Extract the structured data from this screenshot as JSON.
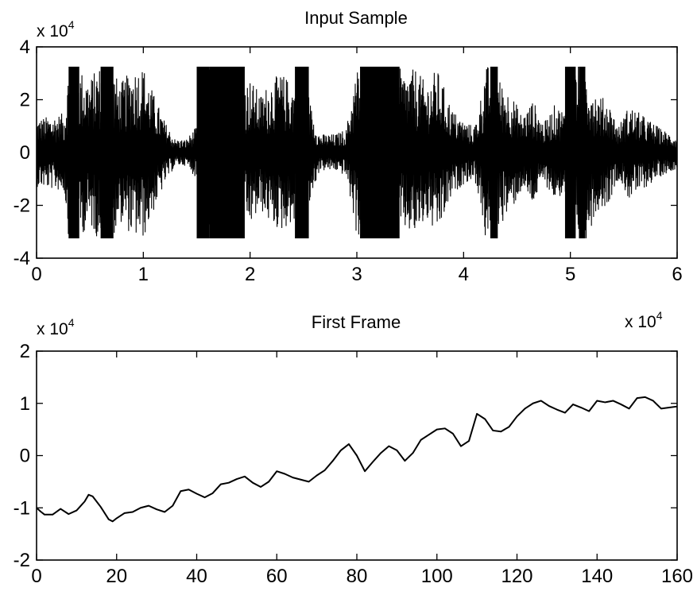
{
  "chart_data": [
    {
      "type": "line",
      "title": "Input Sample",
      "xlabel": "",
      "ylabel": "",
      "x_multiplier": "x 10",
      "x_multiplier_exponent": "",
      "y_multiplier": "x 10",
      "y_multiplier_exponent": "4",
      "xlim": [
        0,
        6
      ],
      "ylim": [
        -4,
        4
      ],
      "xticks": [
        0,
        1,
        2,
        3,
        4,
        5,
        6
      ],
      "xtick_labels": [
        "0",
        "1",
        "2",
        "3",
        "4",
        "5",
        "6"
      ],
      "yticks": [
        -4,
        -2,
        0,
        2,
        4
      ],
      "ytick_labels": [
        "-4",
        "-2",
        "0",
        "2",
        "4"
      ],
      "grid": false,
      "legend": "none",
      "line_color": "#000000",
      "clip_level": 3.25,
      "envelope": {
        "x": [
          0.0,
          0.15,
          0.26,
          0.3,
          0.4,
          0.5,
          0.58,
          0.7,
          0.78,
          0.9,
          1.0,
          1.1,
          1.2,
          1.3,
          1.4,
          1.5,
          1.55,
          1.6,
          1.75,
          1.85,
          1.9,
          2.0,
          2.1,
          2.2,
          2.3,
          2.4,
          2.5,
          2.58,
          2.65,
          2.8,
          2.9,
          3.0,
          3.05,
          3.15,
          3.3,
          3.4,
          3.45,
          3.55,
          3.65,
          3.75,
          3.9,
          4.0,
          4.1,
          4.15,
          4.2,
          4.25,
          4.35,
          4.45,
          4.55,
          4.65,
          4.75,
          4.85,
          4.95,
          5.05,
          5.15,
          5.25,
          5.35,
          5.45,
          5.55,
          5.65,
          5.75,
          5.85,
          5.95,
          6.0
        ],
        "y": [
          1.3,
          1.4,
          1.5,
          3.2,
          3.2,
          2.8,
          3.3,
          3.3,
          2.6,
          3.2,
          3.3,
          2.2,
          1.2,
          0.5,
          0.5,
          1.0,
          3.2,
          3.3,
          3.3,
          3.3,
          2.6,
          2.8,
          2.2,
          2.8,
          3.0,
          2.6,
          3.2,
          1.6,
          0.7,
          0.7,
          0.9,
          3.2,
          3.3,
          3.3,
          3.3,
          3.2,
          3.0,
          3.2,
          2.6,
          3.2,
          1.6,
          1.2,
          1.0,
          1.8,
          3.3,
          3.3,
          2.7,
          2.2,
          1.4,
          2.0,
          1.1,
          1.8,
          1.6,
          3.3,
          3.3,
          2.2,
          2.0,
          1.0,
          1.8,
          1.5,
          1.2,
          0.9,
          0.7,
          0.6
        ]
      },
      "saturated_ranges": [
        [
          0.3,
          0.4
        ],
        [
          0.6,
          0.72
        ],
        [
          1.5,
          1.62
        ],
        [
          1.62,
          1.95
        ],
        [
          2.42,
          2.55
        ],
        [
          3.03,
          3.4
        ],
        [
          4.25,
          4.32
        ],
        [
          4.95,
          5.05
        ],
        [
          5.08,
          5.14
        ]
      ]
    },
    {
      "type": "line",
      "title": "First Frame",
      "xlabel": "",
      "ylabel": "",
      "x_multiplier": "x 10",
      "x_multiplier_exponent": "4",
      "y_multiplier": "x 10",
      "y_multiplier_exponent": "4",
      "xlim": [
        0,
        160
      ],
      "ylim": [
        -2,
        2
      ],
      "xticks": [
        0,
        20,
        40,
        60,
        80,
        100,
        120,
        140,
        160
      ],
      "xtick_labels": [
        "0",
        "20",
        "40",
        "60",
        "80",
        "100",
        "120",
        "140",
        "160"
      ],
      "yticks": [
        -2,
        -1,
        0,
        1,
        2
      ],
      "ytick_labels": [
        "-2",
        "-1",
        "0",
        "1",
        "2"
      ],
      "grid": false,
      "legend": "none",
      "line_color": "#000000",
      "x": [
        0,
        1,
        2,
        4,
        6,
        8,
        10,
        12,
        13,
        14,
        16,
        18,
        19,
        20,
        22,
        24,
        26,
        28,
        30,
        32,
        34,
        36,
        38,
        40,
        42,
        44,
        46,
        48,
        50,
        52,
        54,
        56,
        58,
        60,
        62,
        64,
        66,
        68,
        70,
        72,
        74,
        76,
        78,
        80,
        82,
        84,
        86,
        88,
        90,
        92,
        94,
        96,
        98,
        100,
        102,
        104,
        106,
        108,
        110,
        112,
        114,
        116,
        118,
        120,
        122,
        124,
        126,
        128,
        130,
        132,
        134,
        136,
        138,
        140,
        142,
        144,
        146,
        148,
        150,
        152,
        154,
        156,
        158,
        160
      ],
      "y": [
        -1.0,
        -1.07,
        -1.13,
        -1.13,
        -1.02,
        -1.12,
        -1.05,
        -0.88,
        -0.75,
        -0.78,
        -0.98,
        -1.22,
        -1.26,
        -1.2,
        -1.1,
        -1.08,
        -1.0,
        -0.96,
        -1.03,
        -1.08,
        -0.96,
        -0.68,
        -0.65,
        -0.73,
        -0.8,
        -0.72,
        -0.55,
        -0.52,
        -0.45,
        -0.4,
        -0.52,
        -0.6,
        -0.5,
        -0.3,
        -0.35,
        -0.42,
        -0.46,
        -0.5,
        -0.38,
        -0.28,
        -0.1,
        0.1,
        0.22,
        0.0,
        -0.3,
        -0.12,
        0.05,
        0.18,
        0.1,
        -0.1,
        0.05,
        0.3,
        0.4,
        0.5,
        0.52,
        0.42,
        0.18,
        0.28,
        0.8,
        0.7,
        0.48,
        0.46,
        0.55,
        0.75,
        0.9,
        1.0,
        1.05,
        0.95,
        0.88,
        0.82,
        0.98,
        0.92,
        0.85,
        1.05,
        1.02,
        1.05,
        0.98,
        0.9,
        1.1,
        1.12,
        1.05,
        0.9,
        0.92,
        0.94
      ]
    }
  ]
}
